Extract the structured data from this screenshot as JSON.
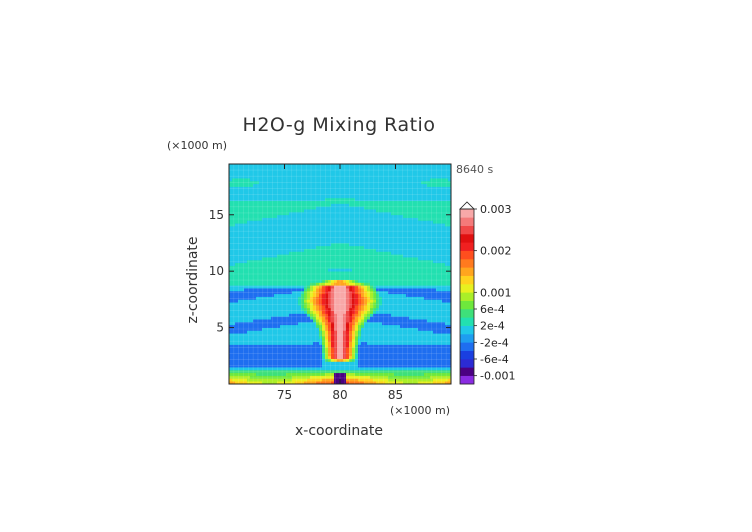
{
  "chart_data": {
    "type": "heatmap",
    "title": "H2O-g Mixing Ratio",
    "time_label": "8640 s",
    "xlabel": "x-coordinate",
    "ylabel": "z-coordinate",
    "x_unit": "(×1000 m)",
    "y_unit": "(×1000 m)",
    "xlim": [
      70,
      90
    ],
    "ylim": [
      0,
      19.5
    ],
    "x_ticks": [
      75,
      80,
      85
    ],
    "y_ticks": [
      5,
      10,
      15
    ],
    "colorbar": {
      "labels": [
        "0.003",
        "0.002",
        "0.001",
        "6e-4",
        "2e-4",
        "-2e-4",
        "-6e-4",
        "-0.001"
      ],
      "label_values": [
        0.003,
        0.002,
        0.001,
        0.0006,
        0.0002,
        -0.0002,
        -0.0006,
        -0.001
      ],
      "range": [
        -0.0012,
        0.003
      ],
      "colors": [
        "#8a2be2",
        "#4b0082",
        "#2b2bd4",
        "#1a3fe0",
        "#1e6ef0",
        "#1e9ef0",
        "#20c8e8",
        "#22e0b0",
        "#3ee07a",
        "#6ee83c",
        "#aaee28",
        "#e8f020",
        "#ffd21e",
        "#ffa51e",
        "#ff7a1e",
        "#ff4e1e",
        "#f02020",
        "#e01010",
        "#f04848",
        "#f47a7a",
        "#f8a8a8"
      ]
    },
    "regions": [
      {
        "name": "background",
        "value": 5e-05
      },
      {
        "name": "upper-band",
        "value": 0.00025
      },
      {
        "name": "mid-blue-bands",
        "value": -0.0003
      },
      {
        "name": "updraft-core",
        "value": 0.0028
      },
      {
        "name": "surface-layer",
        "value": 0.0012
      }
    ]
  }
}
